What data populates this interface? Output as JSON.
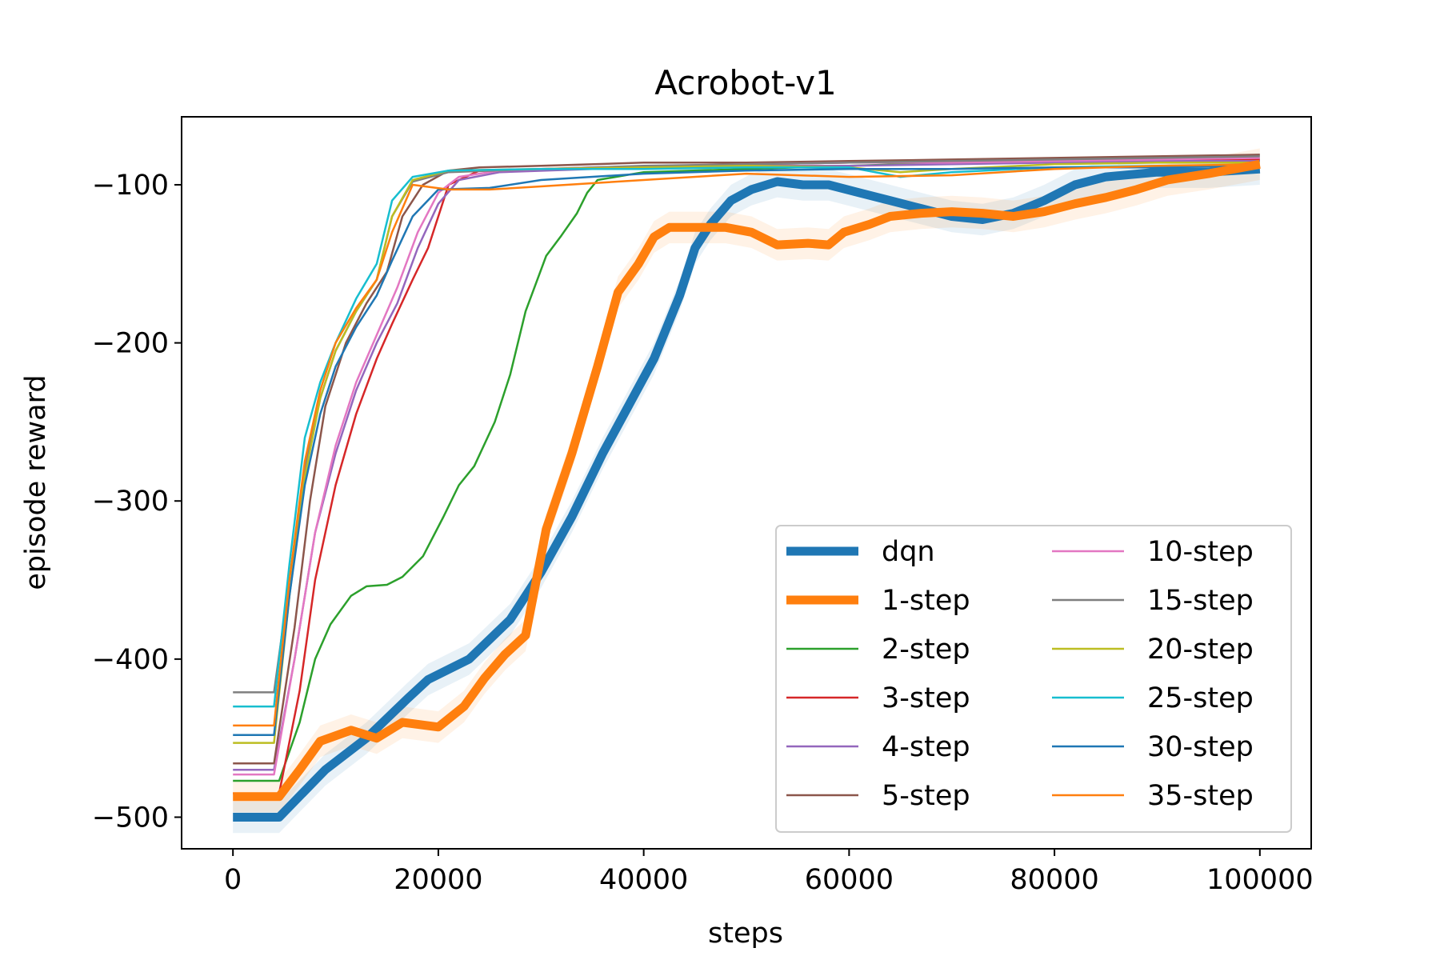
{
  "chart_data": {
    "type": "line",
    "title": "Acrobot-v1",
    "xlabel": "steps",
    "ylabel": "episode reward",
    "xlim": [
      -5000,
      105000
    ],
    "ylim": [
      -520,
      -57
    ],
    "xticks": [
      0,
      20000,
      40000,
      60000,
      80000,
      100000
    ],
    "yticks": [
      -500,
      -400,
      -300,
      -200,
      -100
    ],
    "xtick_labels": [
      "0",
      "20000",
      "40000",
      "60000",
      "80000",
      "100000"
    ],
    "ytick_labels": [
      "−500",
      "−400",
      "−300",
      "−200",
      "−100"
    ],
    "grid": false,
    "legend": {
      "placement": "lower-right",
      "columns": 2
    },
    "series": [
      {
        "name": "dqn",
        "color": "#1f77b4",
        "thick": true,
        "points": [
          [
            0,
            -500
          ],
          [
            4500,
            -500
          ],
          [
            9000,
            -470
          ],
          [
            13000,
            -450
          ],
          [
            17000,
            -425
          ],
          [
            19000,
            -413
          ],
          [
            23000,
            -400
          ],
          [
            27000,
            -375
          ],
          [
            30000,
            -345
          ],
          [
            33000,
            -310
          ],
          [
            36000,
            -270
          ],
          [
            38500,
            -240
          ],
          [
            41000,
            -210
          ],
          [
            43500,
            -170
          ],
          [
            45000,
            -140
          ],
          [
            46500,
            -125
          ],
          [
            48500,
            -110
          ],
          [
            50500,
            -103
          ],
          [
            53000,
            -98
          ],
          [
            55500,
            -100
          ],
          [
            58000,
            -100
          ],
          [
            61000,
            -105
          ],
          [
            64000,
            -110
          ],
          [
            67000,
            -115
          ],
          [
            70000,
            -120
          ],
          [
            73000,
            -122
          ],
          [
            76000,
            -118
          ],
          [
            79000,
            -110
          ],
          [
            82000,
            -100
          ],
          [
            85000,
            -95
          ],
          [
            90000,
            -92
          ],
          [
            95000,
            -92
          ],
          [
            100000,
            -90
          ]
        ]
      },
      {
        "name": "1-step",
        "color": "#ff7f0e",
        "thick": true,
        "points": [
          [
            0,
            -487
          ],
          [
            4500,
            -487
          ],
          [
            6500,
            -470
          ],
          [
            8500,
            -452
          ],
          [
            11500,
            -445
          ],
          [
            14000,
            -450
          ],
          [
            16500,
            -440
          ],
          [
            20000,
            -443
          ],
          [
            22500,
            -430
          ],
          [
            24500,
            -412
          ],
          [
            26500,
            -397
          ],
          [
            28500,
            -385
          ],
          [
            30500,
            -318
          ],
          [
            33000,
            -270
          ],
          [
            35500,
            -215
          ],
          [
            37500,
            -168
          ],
          [
            39500,
            -150
          ],
          [
            41000,
            -133
          ],
          [
            42500,
            -127
          ],
          [
            45000,
            -127
          ],
          [
            48000,
            -127
          ],
          [
            50500,
            -130
          ],
          [
            53000,
            -138
          ],
          [
            56000,
            -137
          ],
          [
            58000,
            -138
          ],
          [
            59500,
            -130
          ],
          [
            62000,
            -125
          ],
          [
            64000,
            -120
          ],
          [
            67000,
            -118
          ],
          [
            70000,
            -117
          ],
          [
            73000,
            -118
          ],
          [
            76000,
            -120
          ],
          [
            79000,
            -117
          ],
          [
            82000,
            -112
          ],
          [
            85000,
            -108
          ],
          [
            88000,
            -103
          ],
          [
            91000,
            -97
          ],
          [
            95000,
            -93
          ],
          [
            100000,
            -87
          ]
        ]
      },
      {
        "name": "2-step",
        "color": "#2ca02c",
        "thick": false,
        "points": [
          [
            0,
            -477
          ],
          [
            4500,
            -477
          ],
          [
            6500,
            -440
          ],
          [
            8000,
            -400
          ],
          [
            9500,
            -378
          ],
          [
            11500,
            -360
          ],
          [
            13000,
            -354
          ],
          [
            15000,
            -353
          ],
          [
            16500,
            -348
          ],
          [
            18500,
            -335
          ],
          [
            20500,
            -310
          ],
          [
            22000,
            -290
          ],
          [
            23500,
            -278
          ],
          [
            25500,
            -250
          ],
          [
            27000,
            -220
          ],
          [
            28500,
            -180
          ],
          [
            30500,
            -145
          ],
          [
            32000,
            -132
          ],
          [
            33500,
            -118
          ],
          [
            34500,
            -105
          ],
          [
            35500,
            -97
          ],
          [
            40000,
            -92
          ],
          [
            50000,
            -90
          ],
          [
            60000,
            -88
          ],
          [
            70000,
            -86
          ],
          [
            80000,
            -84
          ],
          [
            90000,
            -84
          ],
          [
            100000,
            -85
          ]
        ]
      },
      {
        "name": "3-step",
        "color": "#d62728",
        "thick": false,
        "points": [
          [
            0,
            -485
          ],
          [
            4500,
            -485
          ],
          [
            6500,
            -420
          ],
          [
            8000,
            -350
          ],
          [
            10000,
            -290
          ],
          [
            12000,
            -245
          ],
          [
            14000,
            -210
          ],
          [
            15500,
            -188
          ],
          [
            17500,
            -160
          ],
          [
            19000,
            -140
          ],
          [
            21000,
            -100
          ],
          [
            24000,
            -91
          ],
          [
            30000,
            -90
          ],
          [
            40000,
            -89
          ],
          [
            50000,
            -87
          ],
          [
            60000,
            -86
          ],
          [
            70000,
            -86
          ],
          [
            80000,
            -85
          ],
          [
            90000,
            -84
          ],
          [
            100000,
            -84
          ]
        ]
      },
      {
        "name": "4-step",
        "color": "#9467bd",
        "thick": false,
        "points": [
          [
            0,
            -470
          ],
          [
            4000,
            -470
          ],
          [
            6000,
            -400
          ],
          [
            8000,
            -320
          ],
          [
            10000,
            -270
          ],
          [
            12000,
            -230
          ],
          [
            14000,
            -200
          ],
          [
            16000,
            -175
          ],
          [
            18000,
            -140
          ],
          [
            20000,
            -112
          ],
          [
            22000,
            -97
          ],
          [
            26000,
            -92
          ],
          [
            35000,
            -90
          ],
          [
            50000,
            -88
          ],
          [
            60000,
            -88
          ],
          [
            70000,
            -87
          ],
          [
            80000,
            -86
          ],
          [
            90000,
            -85
          ],
          [
            100000,
            -85
          ]
        ]
      },
      {
        "name": "5-step",
        "color": "#8c564b",
        "thick": false,
        "points": [
          [
            0,
            -466
          ],
          [
            4000,
            -466
          ],
          [
            6000,
            -380
          ],
          [
            7500,
            -300
          ],
          [
            9000,
            -240
          ],
          [
            11000,
            -200
          ],
          [
            13000,
            -175
          ],
          [
            15000,
            -155
          ],
          [
            16500,
            -120
          ],
          [
            18500,
            -100
          ],
          [
            21000,
            -91
          ],
          [
            24000,
            -89
          ],
          [
            30000,
            -88
          ],
          [
            40000,
            -86
          ],
          [
            50000,
            -86
          ],
          [
            60000,
            -85
          ],
          [
            70000,
            -84
          ],
          [
            80000,
            -83
          ],
          [
            90000,
            -82
          ],
          [
            100000,
            -81
          ]
        ]
      },
      {
        "name": "10-step",
        "color": "#e377c2",
        "thick": false,
        "points": [
          [
            0,
            -473
          ],
          [
            4000,
            -473
          ],
          [
            6000,
            -400
          ],
          [
            8000,
            -320
          ],
          [
            10000,
            -265
          ],
          [
            12000,
            -225
          ],
          [
            14000,
            -195
          ],
          [
            16000,
            -165
          ],
          [
            18000,
            -130
          ],
          [
            20000,
            -105
          ],
          [
            22000,
            -95
          ],
          [
            26000,
            -91
          ],
          [
            35000,
            -89
          ],
          [
            50000,
            -87
          ],
          [
            60000,
            -86
          ],
          [
            70000,
            -86
          ],
          [
            80000,
            -85
          ],
          [
            90000,
            -84
          ],
          [
            100000,
            -83
          ]
        ]
      },
      {
        "name": "15-step",
        "color": "#7f7f7f",
        "thick": false,
        "points": [
          [
            0,
            -421
          ],
          [
            4000,
            -421
          ],
          [
            5500,
            -350
          ],
          [
            7000,
            -280
          ],
          [
            8500,
            -235
          ],
          [
            10000,
            -205
          ],
          [
            12000,
            -180
          ],
          [
            14000,
            -160
          ],
          [
            15500,
            -120
          ],
          [
            17500,
            -98
          ],
          [
            21000,
            -92
          ],
          [
            30000,
            -90
          ],
          [
            40000,
            -88
          ],
          [
            50000,
            -87
          ],
          [
            60000,
            -86
          ],
          [
            70000,
            -85
          ],
          [
            80000,
            -84
          ],
          [
            90000,
            -83
          ],
          [
            100000,
            -82
          ]
        ]
      },
      {
        "name": "20-step",
        "color": "#bcbd22",
        "thick": false,
        "points": [
          [
            0,
            -453
          ],
          [
            4000,
            -453
          ],
          [
            5500,
            -360
          ],
          [
            7000,
            -285
          ],
          [
            8500,
            -235
          ],
          [
            10000,
            -205
          ],
          [
            12000,
            -180
          ],
          [
            14000,
            -160
          ],
          [
            15500,
            -120
          ],
          [
            17500,
            -97
          ],
          [
            21000,
            -91
          ],
          [
            30000,
            -90
          ],
          [
            40000,
            -89
          ],
          [
            50000,
            -88
          ],
          [
            60000,
            -89
          ],
          [
            65000,
            -92
          ],
          [
            70000,
            -90
          ],
          [
            80000,
            -87
          ],
          [
            90000,
            -86
          ],
          [
            100000,
            -86
          ]
        ]
      },
      {
        "name": "25-step",
        "color": "#17becf",
        "thick": false,
        "points": [
          [
            0,
            -430
          ],
          [
            4000,
            -430
          ],
          [
            5500,
            -340
          ],
          [
            7000,
            -260
          ],
          [
            8500,
            -225
          ],
          [
            10000,
            -200
          ],
          [
            12000,
            -172
          ],
          [
            14000,
            -150
          ],
          [
            15500,
            -110
          ],
          [
            17500,
            -95
          ],
          [
            21000,
            -91
          ],
          [
            30000,
            -90
          ],
          [
            40000,
            -90
          ],
          [
            50000,
            -89
          ],
          [
            60000,
            -89
          ],
          [
            65000,
            -95
          ],
          [
            70000,
            -92
          ],
          [
            80000,
            -89
          ],
          [
            90000,
            -88
          ],
          [
            100000,
            -88
          ]
        ]
      },
      {
        "name": "30-step",
        "color": "#1f77b4",
        "thick": false,
        "points": [
          [
            0,
            -448
          ],
          [
            4000,
            -448
          ],
          [
            5500,
            -360
          ],
          [
            7000,
            -290
          ],
          [
            8500,
            -245
          ],
          [
            10000,
            -215
          ],
          [
            12000,
            -190
          ],
          [
            14000,
            -170
          ],
          [
            15500,
            -148
          ],
          [
            17500,
            -120
          ],
          [
            20000,
            -103
          ],
          [
            25000,
            -102
          ],
          [
            30000,
            -97
          ],
          [
            40000,
            -93
          ],
          [
            50000,
            -91
          ],
          [
            60000,
            -90
          ],
          [
            70000,
            -90
          ],
          [
            80000,
            -89
          ],
          [
            90000,
            -89
          ],
          [
            100000,
            -88
          ]
        ]
      },
      {
        "name": "35-step",
        "color": "#ff7f0e",
        "thick": false,
        "points": [
          [
            0,
            -442
          ],
          [
            4000,
            -442
          ],
          [
            5500,
            -350
          ],
          [
            7000,
            -275
          ],
          [
            8500,
            -230
          ],
          [
            10000,
            -200
          ],
          [
            12000,
            -178
          ],
          [
            14000,
            -160
          ],
          [
            15500,
            -130
          ],
          [
            17500,
            -100
          ],
          [
            21000,
            -103
          ],
          [
            25000,
            -103
          ],
          [
            30000,
            -101
          ],
          [
            35000,
            -99
          ],
          [
            40000,
            -97
          ],
          [
            50000,
            -93
          ],
          [
            60000,
            -95
          ],
          [
            70000,
            -94
          ],
          [
            80000,
            -90
          ],
          [
            90000,
            -88
          ],
          [
            100000,
            -87
          ]
        ]
      }
    ]
  }
}
